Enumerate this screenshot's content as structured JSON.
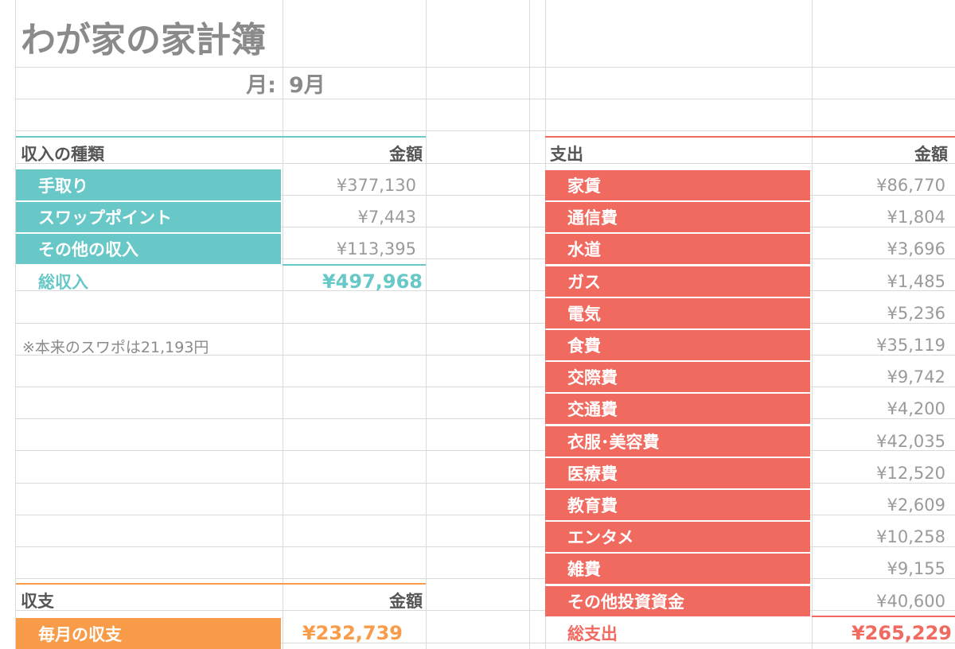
{
  "title": "わが家の家計簿",
  "month_label": "月:",
  "month_value": "9月",
  "income": {
    "header_label": "収入の種類",
    "header_amount": "金額",
    "items": [
      {
        "label": "手取り",
        "amount": "¥377,130"
      },
      {
        "label": "スワップポイント",
        "amount": "¥7,443"
      },
      {
        "label": "その他の収入",
        "amount": "¥113,395"
      }
    ],
    "total_label": "総収入",
    "total_amount": "¥497,968"
  },
  "note": "※本来のスワポは21,193円",
  "balance": {
    "header_label": "収支",
    "header_amount": "金額",
    "row_label": "毎月の収支",
    "row_amount": "¥232,739"
  },
  "expense": {
    "header_label": "支出",
    "header_amount": "金額",
    "items": [
      {
        "label": "家賃",
        "amount": "¥86,770"
      },
      {
        "label": "通信費",
        "amount": "¥1,804"
      },
      {
        "label": "水道",
        "amount": "¥3,696"
      },
      {
        "label": "ガス",
        "amount": "¥1,485"
      },
      {
        "label": "電気",
        "amount": "¥5,236"
      },
      {
        "label": "食費",
        "amount": "¥35,119"
      },
      {
        "label": "交際費",
        "amount": "¥9,742"
      },
      {
        "label": "交通費",
        "amount": "¥4,200"
      },
      {
        "label": "衣服･美容費",
        "amount": "¥42,035"
      },
      {
        "label": "医療費",
        "amount": "¥12,520"
      },
      {
        "label": "教育費",
        "amount": "¥2,609"
      },
      {
        "label": "エンタメ",
        "amount": "¥10,258"
      },
      {
        "label": "雑費",
        "amount": "¥9,155"
      },
      {
        "label": "その他投資資金",
        "amount": "¥40,600"
      }
    ],
    "total_label": "総支出",
    "total_amount": "¥265,229"
  },
  "colors": {
    "income_accent": "#68c8c8",
    "expense_accent": "#f06a60",
    "balance_accent": "#f99c4a"
  }
}
